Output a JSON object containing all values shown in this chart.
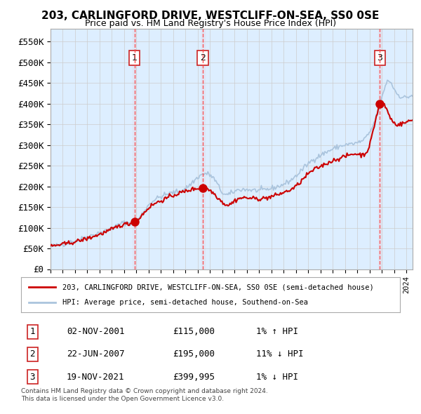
{
  "title": "203, CARLINGFORD DRIVE, WESTCLIFF-ON-SEA, SS0 0SE",
  "subtitle": "Price paid vs. HM Land Registry's House Price Index (HPI)",
  "ylabel_ticks": [
    "£0",
    "£50K",
    "£100K",
    "£150K",
    "£200K",
    "£250K",
    "£300K",
    "£350K",
    "£400K",
    "£450K",
    "£500K",
    "£550K"
  ],
  "ytick_values": [
    0,
    50000,
    100000,
    150000,
    200000,
    250000,
    300000,
    350000,
    400000,
    450000,
    500000,
    550000
  ],
  "ylim": [
    0,
    580000
  ],
  "xlim_start": 1995.0,
  "xlim_end": 2024.5,
  "sale_dates": [
    "2001-11-02",
    "2007-06-22",
    "2021-11-19"
  ],
  "sale_prices": [
    115000,
    195000,
    399995
  ],
  "sale_labels": [
    "1",
    "2",
    "3"
  ],
  "transaction_table": [
    {
      "label": "1",
      "date": "02-NOV-2001",
      "price": "£115,000",
      "hpi": "1% ↑ HPI"
    },
    {
      "label": "2",
      "date": "22-JUN-2007",
      "price": "£195,000",
      "hpi": "11% ↓ HPI"
    },
    {
      "label": "3",
      "date": "19-NOV-2021",
      "price": "£399,995",
      "hpi": "1% ↓ HPI"
    }
  ],
  "legend_red_label": "203, CARLINGFORD DRIVE, WESTCLIFF-ON-SEA, SS0 0SE (semi-detached house)",
  "legend_blue_label": "HPI: Average price, semi-detached house, Southend-on-Sea",
  "footer": "Contains HM Land Registry data © Crown copyright and database right 2024.\nThis data is licensed under the Open Government Licence v3.0.",
  "hpi_color": "#aac4dd",
  "price_color": "#cc0000",
  "sale_dot_color": "#cc0000",
  "vline_color": "#ff4444",
  "bg_color": "#ddeeff",
  "plot_bg": "#ffffff",
  "grid_color": "#cccccc"
}
